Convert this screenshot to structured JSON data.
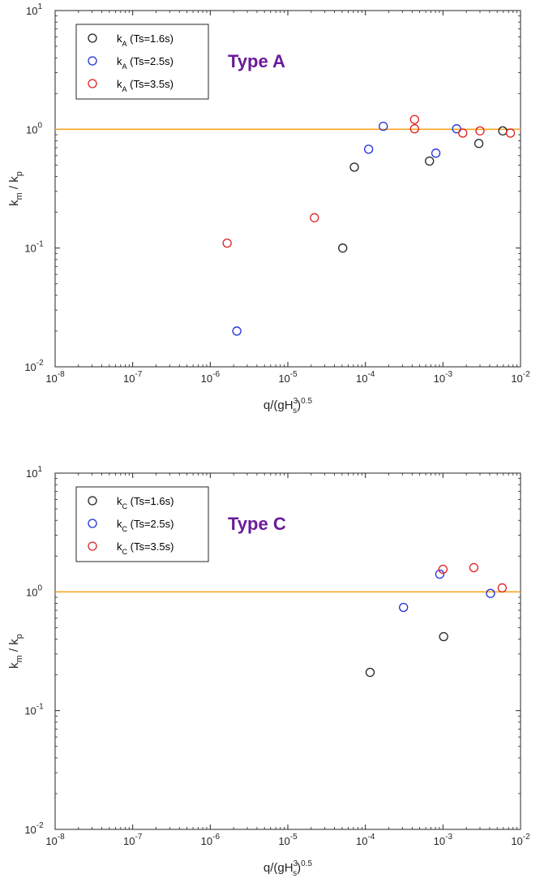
{
  "chart_data": [
    {
      "type": "scatter",
      "title": "Type A",
      "xlabel": {
        "base": "q/(gH",
        "sup1": "3",
        "sub1": "s",
        "close": ")",
        "sup2": "0.5"
      },
      "ylabel": {
        "t1": "k",
        "s1": "m",
        "mid": " / k",
        "s2": "p"
      },
      "xscale": "log",
      "yscale": "log",
      "xlim": [
        1e-08,
        0.01
      ],
      "ylim": [
        0.01,
        10
      ],
      "x_ticks": [
        {
          "base": "10",
          "exp": "-8"
        },
        {
          "base": "10",
          "exp": "-7"
        },
        {
          "base": "10",
          "exp": "-6"
        },
        {
          "base": "10",
          "exp": "-5"
        },
        {
          "base": "10",
          "exp": "-4"
        },
        {
          "base": "10",
          "exp": "-3"
        },
        {
          "base": "10",
          "exp": "-2"
        }
      ],
      "y_ticks": [
        {
          "base": "10",
          "exp": "-2"
        },
        {
          "base": "10",
          "exp": "-1"
        },
        {
          "base": "10",
          "exp": "0"
        },
        {
          "base": "10",
          "exp": "1"
        }
      ],
      "reference_line": {
        "y": 1.0,
        "color": "#f5a623"
      },
      "legend_position": "top-left",
      "grid": false,
      "series": [
        {
          "name": {
            "k": "k",
            "sub": "A",
            "rest": " (Ts=1.6s)"
          },
          "color": "#222222",
          "points": [
            [
              5.1e-05,
              0.1
            ],
            [
              7.2e-05,
              0.48
            ],
            [
              0.00067,
              0.54
            ],
            [
              0.0029,
              0.76
            ],
            [
              0.0059,
              0.97
            ]
          ]
        },
        {
          "name": {
            "k": "k",
            "sub": "A",
            "rest": " (Ts=2.5s)"
          },
          "color": "#2030d8",
          "points": [
            [
              2.2e-06,
              0.02
            ],
            [
              0.00011,
              0.68
            ],
            [
              0.00017,
              1.06
            ],
            [
              0.00081,
              0.63
            ],
            [
              0.0015,
              1.01
            ]
          ]
        },
        {
          "name": {
            "k": "k",
            "sub": "A",
            "rest": " (Ts=3.5s)"
          },
          "color": "#e02020",
          "points": [
            [
              1.65e-06,
              0.11
            ],
            [
              2.2e-05,
              0.18
            ],
            [
              0.00043,
              1.21
            ],
            [
              0.00043,
              1.01
            ],
            [
              0.0018,
              0.93
            ],
            [
              0.003,
              0.97
            ],
            [
              0.0074,
              0.93
            ]
          ]
        }
      ]
    },
    {
      "type": "scatter",
      "title": "Type C",
      "xlabel": {
        "base": "q/(gH",
        "sup1": "3",
        "sub1": "s",
        "close": ")",
        "sup2": "0.5"
      },
      "ylabel": {
        "t1": "k",
        "s1": "m",
        "mid": " / k",
        "s2": "p"
      },
      "xscale": "log",
      "yscale": "log",
      "xlim": [
        1e-08,
        0.01
      ],
      "ylim": [
        0.01,
        10
      ],
      "x_ticks": [
        {
          "base": "10",
          "exp": "-8"
        },
        {
          "base": "10",
          "exp": "-7"
        },
        {
          "base": "10",
          "exp": "-6"
        },
        {
          "base": "10",
          "exp": "-5"
        },
        {
          "base": "10",
          "exp": "-4"
        },
        {
          "base": "10",
          "exp": "-3"
        },
        {
          "base": "10",
          "exp": "-2"
        }
      ],
      "y_ticks": [
        {
          "base": "10",
          "exp": "-2"
        },
        {
          "base": "10",
          "exp": "-1"
        },
        {
          "base": "10",
          "exp": "0"
        },
        {
          "base": "10",
          "exp": "1"
        }
      ],
      "reference_line": {
        "y": 1.0,
        "color": "#f5a623"
      },
      "legend_position": "top-left",
      "grid": false,
      "series": [
        {
          "name": {
            "k": "k",
            "sub": "C",
            "rest": " (Ts=1.6s)"
          },
          "color": "#222222",
          "points": [
            [
              0.000115,
              0.21
            ],
            [
              0.00102,
              0.42
            ]
          ]
        },
        {
          "name": {
            "k": "k",
            "sub": "C",
            "rest": " (Ts=2.5s)"
          },
          "color": "#2030d8",
          "points": [
            [
              0.00031,
              0.74
            ],
            [
              0.00091,
              1.41
            ],
            [
              0.0041,
              0.97
            ]
          ]
        },
        {
          "name": {
            "k": "k",
            "sub": "C",
            "rest": " (Ts=3.5s)"
          },
          "color": "#e02020",
          "points": [
            [
              0.001,
              1.55
            ],
            [
              0.0025,
              1.6
            ],
            [
              0.0058,
              1.08
            ]
          ]
        }
      ]
    }
  ]
}
